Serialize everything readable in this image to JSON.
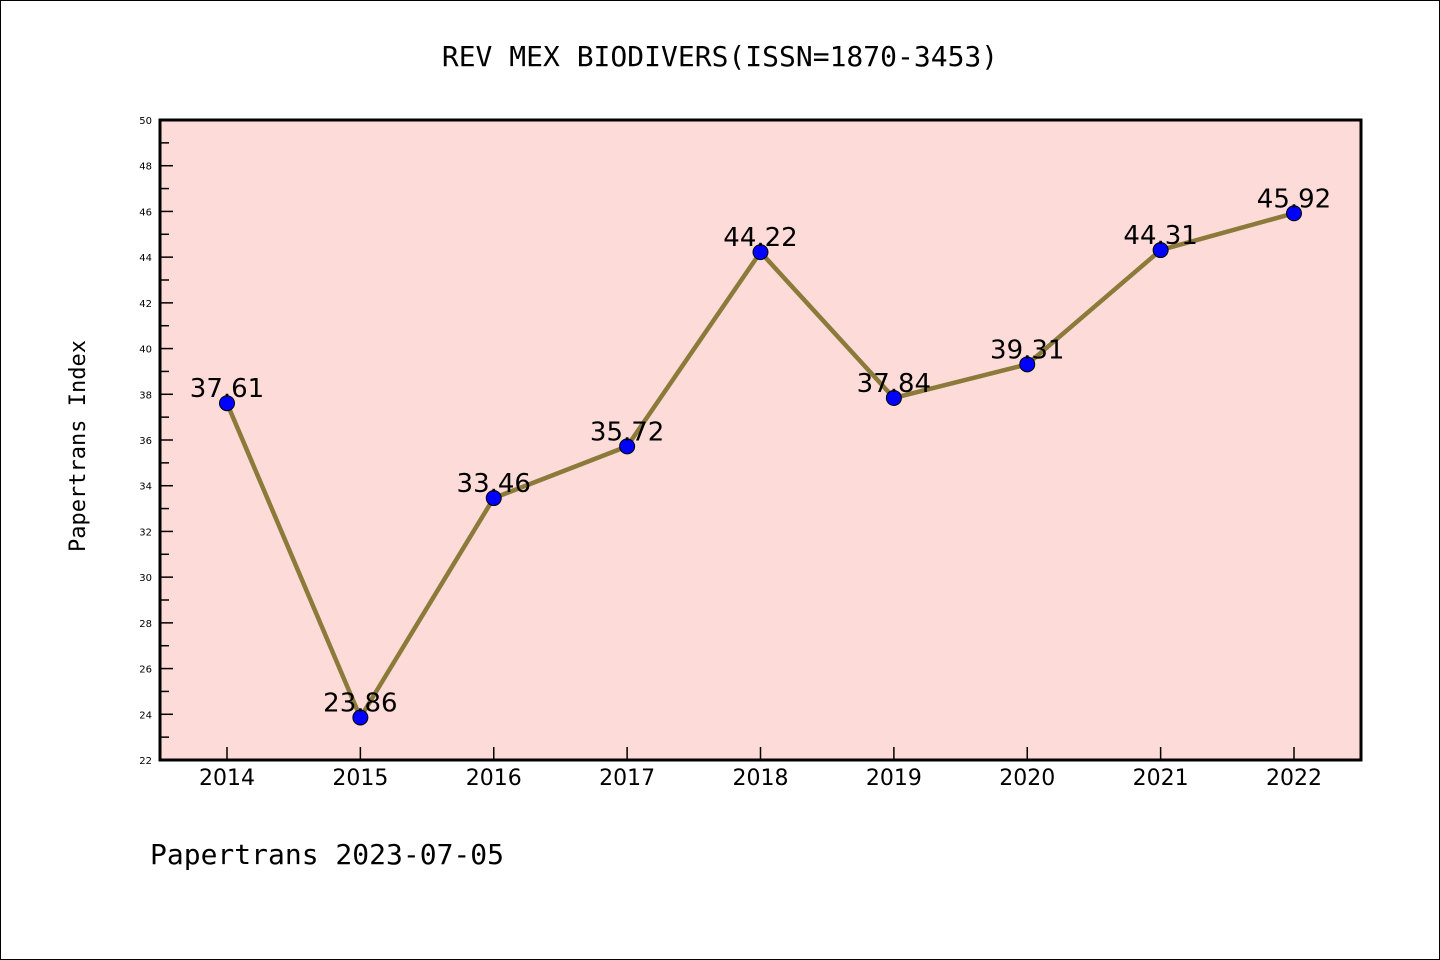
{
  "chart_data": {
    "type": "line",
    "title": "REV MEX BIODIVERS(ISSN=1870-3453)",
    "xlabel": "",
    "ylabel": "Papertrans Index",
    "categories": [
      "2014",
      "2015",
      "2016",
      "2017",
      "2018",
      "2019",
      "2020",
      "2021",
      "2022"
    ],
    "values": [
      37.61,
      23.86,
      33.46,
      35.72,
      44.22,
      37.84,
      39.31,
      44.31,
      45.92
    ],
    "data_labels": [
      "37.61",
      "23.86",
      "33.46",
      "35.72",
      "44.22",
      "37.84",
      "39.31",
      "44.31",
      "45.92"
    ],
    "ylim": [
      22,
      50
    ],
    "yticks": [
      22,
      24,
      26,
      28,
      30,
      32,
      34,
      36,
      38,
      40,
      42,
      44,
      46,
      48,
      50
    ],
    "grid": false,
    "footer": "Papertrans 2023-07-05",
    "colors": {
      "background": "#fddbd8",
      "line": "#8b7a3a",
      "marker": "#0000ff"
    }
  }
}
